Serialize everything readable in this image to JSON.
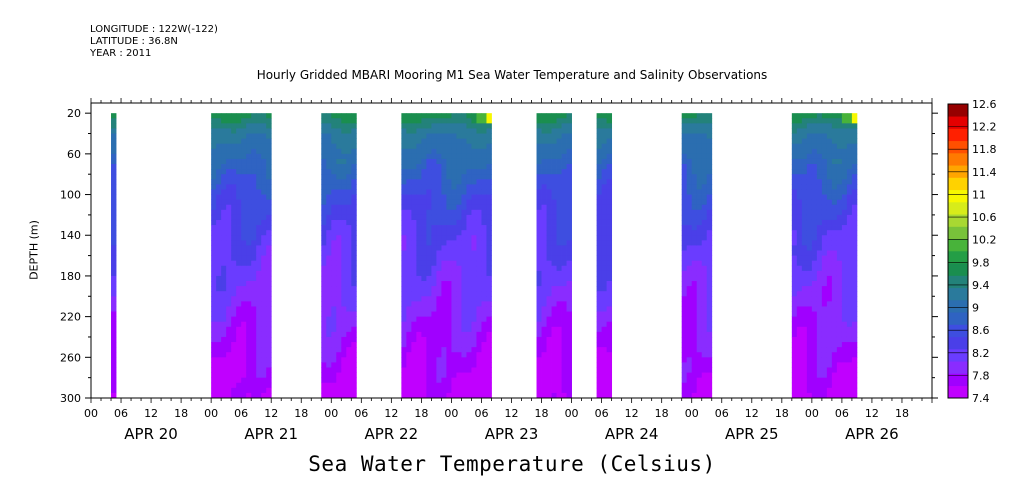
{
  "header": {
    "longitude": "LONGITUDE : 122W(-122)",
    "latitude": "LATITUDE : 36.8N",
    "year": "YEAR : 2011"
  },
  "colors": {
    "palette": [
      "#c000ff",
      "#a000ff",
      "#8a2cff",
      "#6a3cff",
      "#4a3fe8",
      "#3e4ee0",
      "#2f63c2",
      "#2b6eb0",
      "#2a7a9c",
      "#23827a",
      "#1a8e4f",
      "#249e46",
      "#48b33a",
      "#78c23a",
      "#a8d832",
      "#d7ec1a",
      "#f7f800",
      "#ffd200",
      "#ffa500",
      "#ff7a00",
      "#ff5000",
      "#ff2000",
      "#e40000",
      "#960000"
    ]
  },
  "chart_data": {
    "type": "heatmap",
    "title": "Hourly Gridded MBARI Mooring M1 Sea Water Temperature and Salinity Observations",
    "xlabel": "",
    "ylabel": "DEPTH (m)",
    "bottom_title": "Sea Water Temperature (Celsius)",
    "y_ticks": [
      20,
      60,
      100,
      140,
      180,
      220,
      260,
      300
    ],
    "ylim": [
      300,
      10
    ],
    "x_hour_ticks": [
      "00",
      "06",
      "12",
      "18",
      "00",
      "06",
      "12",
      "18",
      "00",
      "06",
      "12",
      "18",
      "00",
      "06",
      "12",
      "18",
      "00",
      "06",
      "12",
      "18",
      "00",
      "06",
      "12",
      "18",
      "00",
      "06",
      "12",
      "18"
    ],
    "x_day_labels": [
      "APR 20",
      "APR 21",
      "APR 22",
      "APR 23",
      "APR 24",
      "APR 25",
      "APR 26"
    ],
    "colorbar_levels": [
      12.6,
      12.2,
      11.8,
      11.4,
      11,
      10.6,
      10.2,
      9.8,
      9.4,
      9,
      8.6,
      8.2,
      7.8,
      7.4
    ],
    "value_range": [
      7.4,
      12.6
    ],
    "data_segments_hours": [
      [
        4,
        5
      ],
      [
        24,
        36
      ],
      [
        46,
        53
      ],
      [
        62,
        80
      ],
      [
        89,
        96
      ],
      [
        101,
        104
      ],
      [
        118,
        124
      ],
      [
        140,
        153
      ]
    ],
    "profile_depths": [
      20,
      40,
      60,
      80,
      100,
      140,
      180,
      220,
      260,
      300
    ],
    "typical_profile_values": [
      9.7,
      9.2,
      9.0,
      8.8,
      8.6,
      8.3,
      8.1,
      7.9,
      7.7,
      7.5
    ],
    "surface_warm_max": 11.0
  }
}
